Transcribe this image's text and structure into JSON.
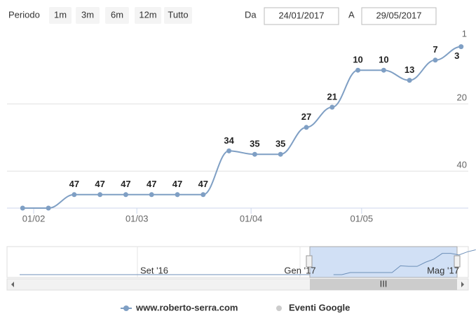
{
  "controls": {
    "period_label": "Periodo",
    "buttons": [
      "1m",
      "3m",
      "6m",
      "12m",
      "Tutto"
    ],
    "from_label": "Da",
    "from": "24/01/2017",
    "to_label": "A",
    "to": "29/05/2017"
  },
  "chart_data": {
    "type": "line",
    "smooth": true,
    "y_reversed": true,
    "x": [
      "2017-01-29",
      "2017-02-05",
      "2017-02-12",
      "2017-02-19",
      "2017-02-26",
      "2017-03-05",
      "2017-03-12",
      "2017-03-19",
      "2017-03-26",
      "2017-04-02",
      "2017-04-09",
      "2017-04-16",
      "2017-04-23",
      "2017-04-30",
      "2017-05-07",
      "2017-05-14",
      "2017-05-21",
      "2017-05-28"
    ],
    "series": [
      {
        "name": "www.roberto-serra.com",
        "color": "#7f9fc4",
        "values": [
          51,
          51,
          47,
          47,
          47,
          47,
          47,
          47,
          34,
          35,
          35,
          27,
          21,
          10,
          10,
          13,
          7,
          3
        ],
        "value_labels": [
          null,
          null,
          "47",
          "47",
          "47",
          "47",
          "47",
          "47",
          "34",
          "35",
          "35",
          "27",
          "21",
          "10",
          "10",
          "13",
          "7",
          "3"
        ]
      },
      {
        "name": "Eventi Google",
        "color": "#cccccc",
        "visible": false
      }
    ],
    "xlim": [
      "2017-01-24",
      "2017-05-29"
    ],
    "xticks": [
      {
        "value": "2017-02-01",
        "label": "01/02"
      },
      {
        "value": "2017-03-01",
        "label": "01/03"
      },
      {
        "value": "2017-04-01",
        "label": "01/04"
      },
      {
        "value": "2017-05-01",
        "label": "01/05"
      }
    ],
    "ylim": [
      1,
      51
    ],
    "yticks": [
      1,
      20,
      40
    ],
    "grid": true
  },
  "navigator": {
    "labels": [
      "Set '16",
      "Gen '17",
      "Mag '17"
    ]
  }
}
